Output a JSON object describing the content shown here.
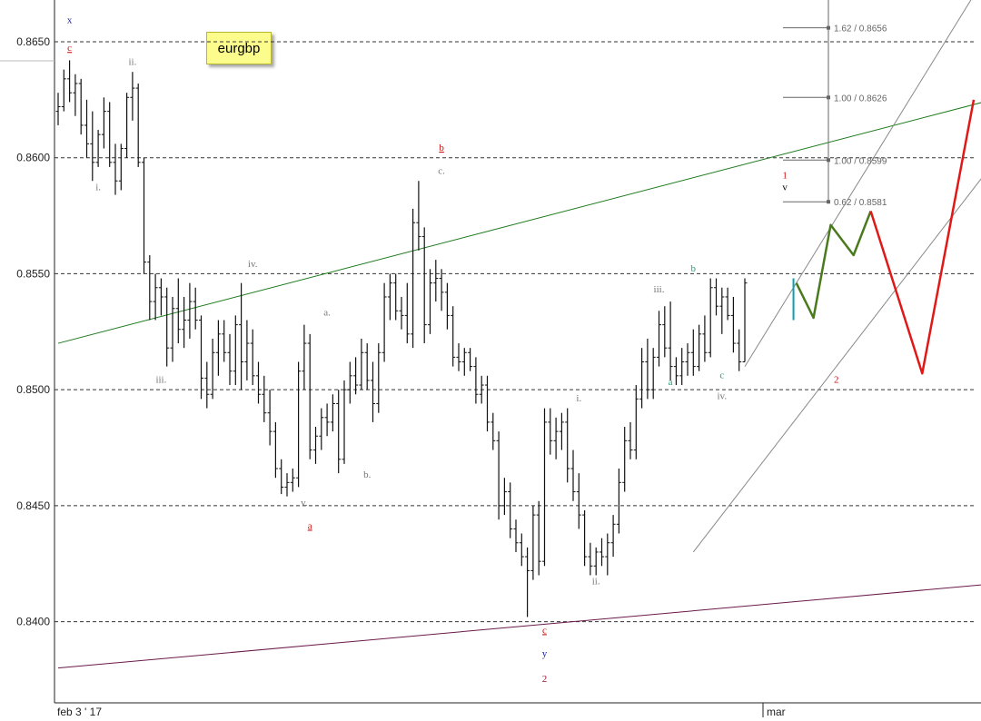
{
  "note": "eurgbp",
  "chart_data": {
    "type": "bar",
    "symbol": "eurgbp",
    "ylim": [
      0.8365,
      0.8668
    ],
    "y_ticks": [
      "0.8650",
      "0.8600",
      "0.8550",
      "0.8500",
      "0.8450",
      "0.8400"
    ],
    "y_tick_values": [
      0.865,
      0.86,
      0.855,
      0.85,
      0.845,
      0.84
    ],
    "x_ticks": [
      "feb 3 ' 17",
      "mar"
    ],
    "grid": "horizontal dashed",
    "series": [
      {
        "values": [
          [
            0.862,
            0.8628,
            0.8614,
            0.8622
          ],
          [
            0.8622,
            0.8638,
            0.862,
            0.8634
          ],
          [
            0.8634,
            0.8642,
            0.8624,
            0.8628
          ],
          [
            0.8628,
            0.8636,
            0.8618,
            0.8632
          ],
          [
            0.8632,
            0.8634,
            0.861,
            0.8614
          ],
          [
            0.8614,
            0.8625,
            0.86,
            0.8606
          ],
          [
            0.8606,
            0.862,
            0.859,
            0.8598
          ],
          [
            0.8598,
            0.8612,
            0.8596,
            0.861
          ],
          [
            0.861,
            0.8626,
            0.8604,
            0.862
          ],
          [
            0.862,
            0.8624,
            0.8596,
            0.8598
          ],
          [
            0.8598,
            0.8606,
            0.8584,
            0.859
          ],
          [
            0.859,
            0.8606,
            0.8586,
            0.8604
          ],
          [
            0.8604,
            0.8628,
            0.86,
            0.8626
          ],
          [
            0.8626,
            0.8637,
            0.8616,
            0.863
          ],
          [
            0.863,
            0.8632,
            0.8596,
            0.8598
          ],
          [
            0.8598,
            0.86,
            0.855,
            0.8555
          ],
          [
            0.8555,
            0.8558,
            0.853,
            0.8538
          ],
          [
            0.8538,
            0.855,
            0.853,
            0.8544
          ],
          [
            0.8544,
            0.8548,
            0.8532,
            0.854
          ],
          [
            0.854,
            0.8544,
            0.851,
            0.8518
          ],
          [
            0.8518,
            0.854,
            0.8512,
            0.8535
          ],
          [
            0.8535,
            0.8548,
            0.852,
            0.8526
          ],
          [
            0.8526,
            0.854,
            0.8518,
            0.853
          ],
          [
            0.853,
            0.8546,
            0.8522,
            0.8538
          ],
          [
            0.8538,
            0.8544,
            0.8526,
            0.853
          ],
          [
            0.853,
            0.8532,
            0.8496,
            0.8505
          ],
          [
            0.8505,
            0.8512,
            0.8492,
            0.8498
          ],
          [
            0.8498,
            0.8522,
            0.8496,
            0.8516
          ],
          [
            0.8516,
            0.853,
            0.8506,
            0.8524
          ],
          [
            0.8524,
            0.853,
            0.8512,
            0.8516
          ],
          [
            0.8516,
            0.8524,
            0.8502,
            0.8508
          ],
          [
            0.8508,
            0.8532,
            0.8502,
            0.8528
          ],
          [
            0.8528,
            0.8546,
            0.85,
            0.8512
          ],
          [
            0.8512,
            0.853,
            0.8504,
            0.852
          ],
          [
            0.852,
            0.8526,
            0.8502,
            0.8506
          ],
          [
            0.8506,
            0.8512,
            0.8494,
            0.8498
          ],
          [
            0.8498,
            0.8506,
            0.8486,
            0.849
          ],
          [
            0.849,
            0.85,
            0.8476,
            0.8482
          ],
          [
            0.8482,
            0.8486,
            0.8462,
            0.8466
          ],
          [
            0.8466,
            0.847,
            0.8455,
            0.8458
          ],
          [
            0.8458,
            0.8464,
            0.8454,
            0.846
          ],
          [
            0.846,
            0.8466,
            0.8456,
            0.8462
          ],
          [
            0.8462,
            0.8512,
            0.8458,
            0.8508
          ],
          [
            0.8508,
            0.8528,
            0.85,
            0.852
          ],
          [
            0.852,
            0.8524,
            0.847,
            0.8474
          ],
          [
            0.8474,
            0.8484,
            0.8468,
            0.848
          ],
          [
            0.848,
            0.8492,
            0.8474,
            0.8488
          ],
          [
            0.8488,
            0.8494,
            0.848,
            0.8486
          ],
          [
            0.8486,
            0.8498,
            0.8482,
            0.8494
          ],
          [
            0.8494,
            0.85,
            0.8464,
            0.847
          ],
          [
            0.847,
            0.8504,
            0.8468,
            0.85
          ],
          [
            0.85,
            0.8512,
            0.8494,
            0.8506
          ],
          [
            0.8506,
            0.8514,
            0.8498,
            0.8502
          ],
          [
            0.8502,
            0.8522,
            0.85,
            0.8516
          ],
          [
            0.8516,
            0.852,
            0.85,
            0.8504
          ],
          [
            0.8504,
            0.8512,
            0.8486,
            0.8494
          ],
          [
            0.8494,
            0.852,
            0.849,
            0.8516
          ],
          [
            0.8516,
            0.8546,
            0.8512,
            0.854
          ],
          [
            0.854,
            0.855,
            0.853,
            0.8546
          ],
          [
            0.8546,
            0.855,
            0.853,
            0.8534
          ],
          [
            0.8534,
            0.854,
            0.8526,
            0.8532
          ],
          [
            0.8532,
            0.8546,
            0.852,
            0.8524
          ],
          [
            0.8524,
            0.8578,
            0.8518,
            0.8572
          ],
          [
            0.8572,
            0.859,
            0.856,
            0.8566
          ],
          [
            0.8566,
            0.857,
            0.852,
            0.8528
          ],
          [
            0.8528,
            0.8552,
            0.8524,
            0.8546
          ],
          [
            0.8546,
            0.8556,
            0.8538,
            0.8548
          ],
          [
            0.8548,
            0.8552,
            0.8534,
            0.8542
          ],
          [
            0.8542,
            0.8546,
            0.8526,
            0.8532
          ],
          [
            0.8532,
            0.8536,
            0.851,
            0.8514
          ],
          [
            0.8514,
            0.852,
            0.8508,
            0.8512
          ],
          [
            0.8512,
            0.8518,
            0.8506,
            0.8516
          ],
          [
            0.8516,
            0.8518,
            0.8508,
            0.851
          ],
          [
            0.851,
            0.8514,
            0.8494,
            0.8498
          ],
          [
            0.8498,
            0.8506,
            0.8494,
            0.8502
          ],
          [
            0.8502,
            0.8506,
            0.8482,
            0.8486
          ],
          [
            0.8486,
            0.849,
            0.8474,
            0.8478
          ],
          [
            0.8478,
            0.8482,
            0.8444,
            0.845
          ],
          [
            0.845,
            0.8462,
            0.8446,
            0.8456
          ],
          [
            0.8456,
            0.846,
            0.8436,
            0.844
          ],
          [
            0.844,
            0.8444,
            0.843,
            0.8434
          ],
          [
            0.8434,
            0.8438,
            0.8424,
            0.8428
          ],
          [
            0.8428,
            0.8432,
            0.8402,
            0.8422
          ],
          [
            0.8422,
            0.845,
            0.8418,
            0.8446
          ],
          [
            0.8446,
            0.8452,
            0.842,
            0.8426
          ],
          [
            0.8426,
            0.8492,
            0.8424,
            0.8486
          ],
          [
            0.8486,
            0.8492,
            0.8472,
            0.8478
          ],
          [
            0.8478,
            0.8488,
            0.847,
            0.8482
          ],
          [
            0.8482,
            0.849,
            0.8474,
            0.8486
          ],
          [
            0.8486,
            0.8492,
            0.846,
            0.8466
          ],
          [
            0.8466,
            0.8474,
            0.8452,
            0.8456
          ],
          [
            0.8456,
            0.8464,
            0.844,
            0.8446
          ],
          [
            0.8446,
            0.8448,
            0.8424,
            0.8428
          ],
          [
            0.8428,
            0.8434,
            0.842,
            0.8424
          ],
          [
            0.8424,
            0.8432,
            0.842,
            0.843
          ],
          [
            0.843,
            0.8436,
            0.8424,
            0.8428
          ],
          [
            0.8428,
            0.8438,
            0.842,
            0.8434
          ],
          [
            0.8434,
            0.8446,
            0.8428,
            0.8442
          ],
          [
            0.8442,
            0.8466,
            0.8438,
            0.846
          ],
          [
            0.846,
            0.8484,
            0.8456,
            0.8478
          ],
          [
            0.8478,
            0.8486,
            0.847,
            0.8474
          ],
          [
            0.8474,
            0.8502,
            0.847,
            0.8496
          ],
          [
            0.8496,
            0.8518,
            0.8492,
            0.8512
          ],
          [
            0.8512,
            0.8522,
            0.8496,
            0.85
          ],
          [
            0.85,
            0.8518,
            0.8496,
            0.8514
          ],
          [
            0.8514,
            0.8534,
            0.851,
            0.8528
          ],
          [
            0.8528,
            0.8536,
            0.8514,
            0.8518
          ],
          [
            0.8518,
            0.8538,
            0.8504,
            0.851
          ],
          [
            0.851,
            0.8514,
            0.8502,
            0.8506
          ],
          [
            0.8506,
            0.8518,
            0.8502,
            0.8512
          ],
          [
            0.8512,
            0.852,
            0.8506,
            0.8516
          ],
          [
            0.8516,
            0.8526,
            0.8506,
            0.851
          ],
          [
            0.851,
            0.8528,
            0.8508,
            0.8524
          ],
          [
            0.8524,
            0.8532,
            0.8512,
            0.8516
          ],
          [
            0.8516,
            0.8548,
            0.8514,
            0.8544
          ],
          [
            0.8544,
            0.8548,
            0.8532,
            0.8536
          ],
          [
            0.8536,
            0.8544,
            0.8524,
            0.854
          ],
          [
            0.854,
            0.8544,
            0.853,
            0.8532
          ],
          [
            0.8532,
            0.854,
            0.8516,
            0.852
          ],
          [
            0.852,
            0.8526,
            0.8508,
            0.8512
          ],
          [
            0.8512,
            0.8548,
            0.8512,
            0.8546
          ]
        ]
      }
    ],
    "trendlines": [
      {
        "color": "#1c7a1c",
        "from": [
          0,
          0.852
        ],
        "to": [
          171,
          0.863
        ]
      },
      {
        "color": "#6a1a4a",
        "from": [
          0,
          0.838
        ],
        "to": [
          171,
          0.8418
        ]
      },
      {
        "color": "#888888",
        "from": [
          111,
          0.843
        ],
        "to": [
          171,
          0.8622
        ]
      },
      {
        "color": "#888888",
        "from": [
          120,
          0.851
        ],
        "to": [
          163,
          0.8682
        ]
      }
    ],
    "projections": [
      {
        "color": "#4a7a1e",
        "points": [
          [
            129,
            0.8546
          ],
          [
            132,
            0.8531
          ],
          [
            135,
            0.8571
          ],
          [
            139,
            0.8558
          ],
          [
            142,
            0.8577
          ]
        ]
      },
      {
        "color": "#e01818",
        "points": [
          [
            142,
            0.8577
          ],
          [
            151,
            0.8507
          ],
          [
            160,
            0.8625
          ]
        ]
      },
      {
        "color": "#0aa0b0",
        "points": [
          [
            128.5,
            0.8548
          ],
          [
            128.5,
            0.853
          ]
        ]
      }
    ],
    "fib_levels": [
      {
        "label": "1.62 / 0.8656",
        "value": 0.8656
      },
      {
        "label": "1.00 / 0.8626",
        "value": 0.8626
      },
      {
        "label": "1.00 / 0.8599",
        "value": 0.8599
      },
      {
        "label": "0.62 / 0.8581",
        "value": 0.8581
      }
    ],
    "annotations": [
      {
        "text": "x",
        "x": 2,
        "y": 0.8658,
        "color": "#1a1aa0"
      },
      {
        "text": "c",
        "x": 2,
        "y": 0.8646,
        "color": "#d01010",
        "underline": true
      },
      {
        "text": "ii.",
        "x": 13,
        "y": 0.864,
        "color": "#777777"
      },
      {
        "text": "i.",
        "x": 7,
        "y": 0.8586,
        "color": "#777777"
      },
      {
        "text": "iii.",
        "x": 18,
        "y": 0.8503,
        "color": "#777777"
      },
      {
        "text": "iv.",
        "x": 34,
        "y": 0.8553,
        "color": "#777777"
      },
      {
        "text": "a.",
        "x": 47,
        "y": 0.8532,
        "color": "#777777"
      },
      {
        "text": "v.",
        "x": 43,
        "y": 0.845,
        "color": "#777777"
      },
      {
        "text": "b.",
        "x": 54,
        "y": 0.8462,
        "color": "#777777"
      },
      {
        "text": "a",
        "x": 44,
        "y": 0.844,
        "color": "#d01010",
        "underline": true
      },
      {
        "text": "b",
        "x": 67,
        "y": 0.8603,
        "color": "#d01010",
        "underline": true
      },
      {
        "text": "c.",
        "x": 67,
        "y": 0.8593,
        "color": "#777777"
      },
      {
        "text": "c",
        "x": 85,
        "y": 0.8395,
        "color": "#d01010",
        "underline": true
      },
      {
        "text": "y",
        "x": 85,
        "y": 0.8385,
        "color": "#1a1aa0"
      },
      {
        "text": "2",
        "x": 85,
        "y": 0.8374,
        "color": "#a01030"
      },
      {
        "text": "i.",
        "x": 91,
        "y": 0.8495,
        "color": "#777777"
      },
      {
        "text": "ii.",
        "x": 94,
        "y": 0.8416,
        "color": "#777777"
      },
      {
        "text": "iii.",
        "x": 105,
        "y": 0.8542,
        "color": "#777777"
      },
      {
        "text": "a",
        "x": 107,
        "y": 0.8502,
        "color": "#2a9a7a"
      },
      {
        "text": "b",
        "x": 111,
        "y": 0.8551,
        "color": "#2a9a7a"
      },
      {
        "text": "c",
        "x": 116,
        "y": 0.8505,
        "color": "#2a9a7a"
      },
      {
        "text": "iv.",
        "x": 116,
        "y": 0.8496,
        "color": "#777777"
      },
      {
        "text": "1",
        "x": 127,
        "y": 0.8591,
        "color": "#d01010"
      },
      {
        "text": "v",
        "x": 127,
        "y": 0.8586,
        "color": "#000000"
      },
      {
        "text": "2",
        "x": 136,
        "y": 0.8503,
        "color": "#d01010"
      }
    ]
  }
}
